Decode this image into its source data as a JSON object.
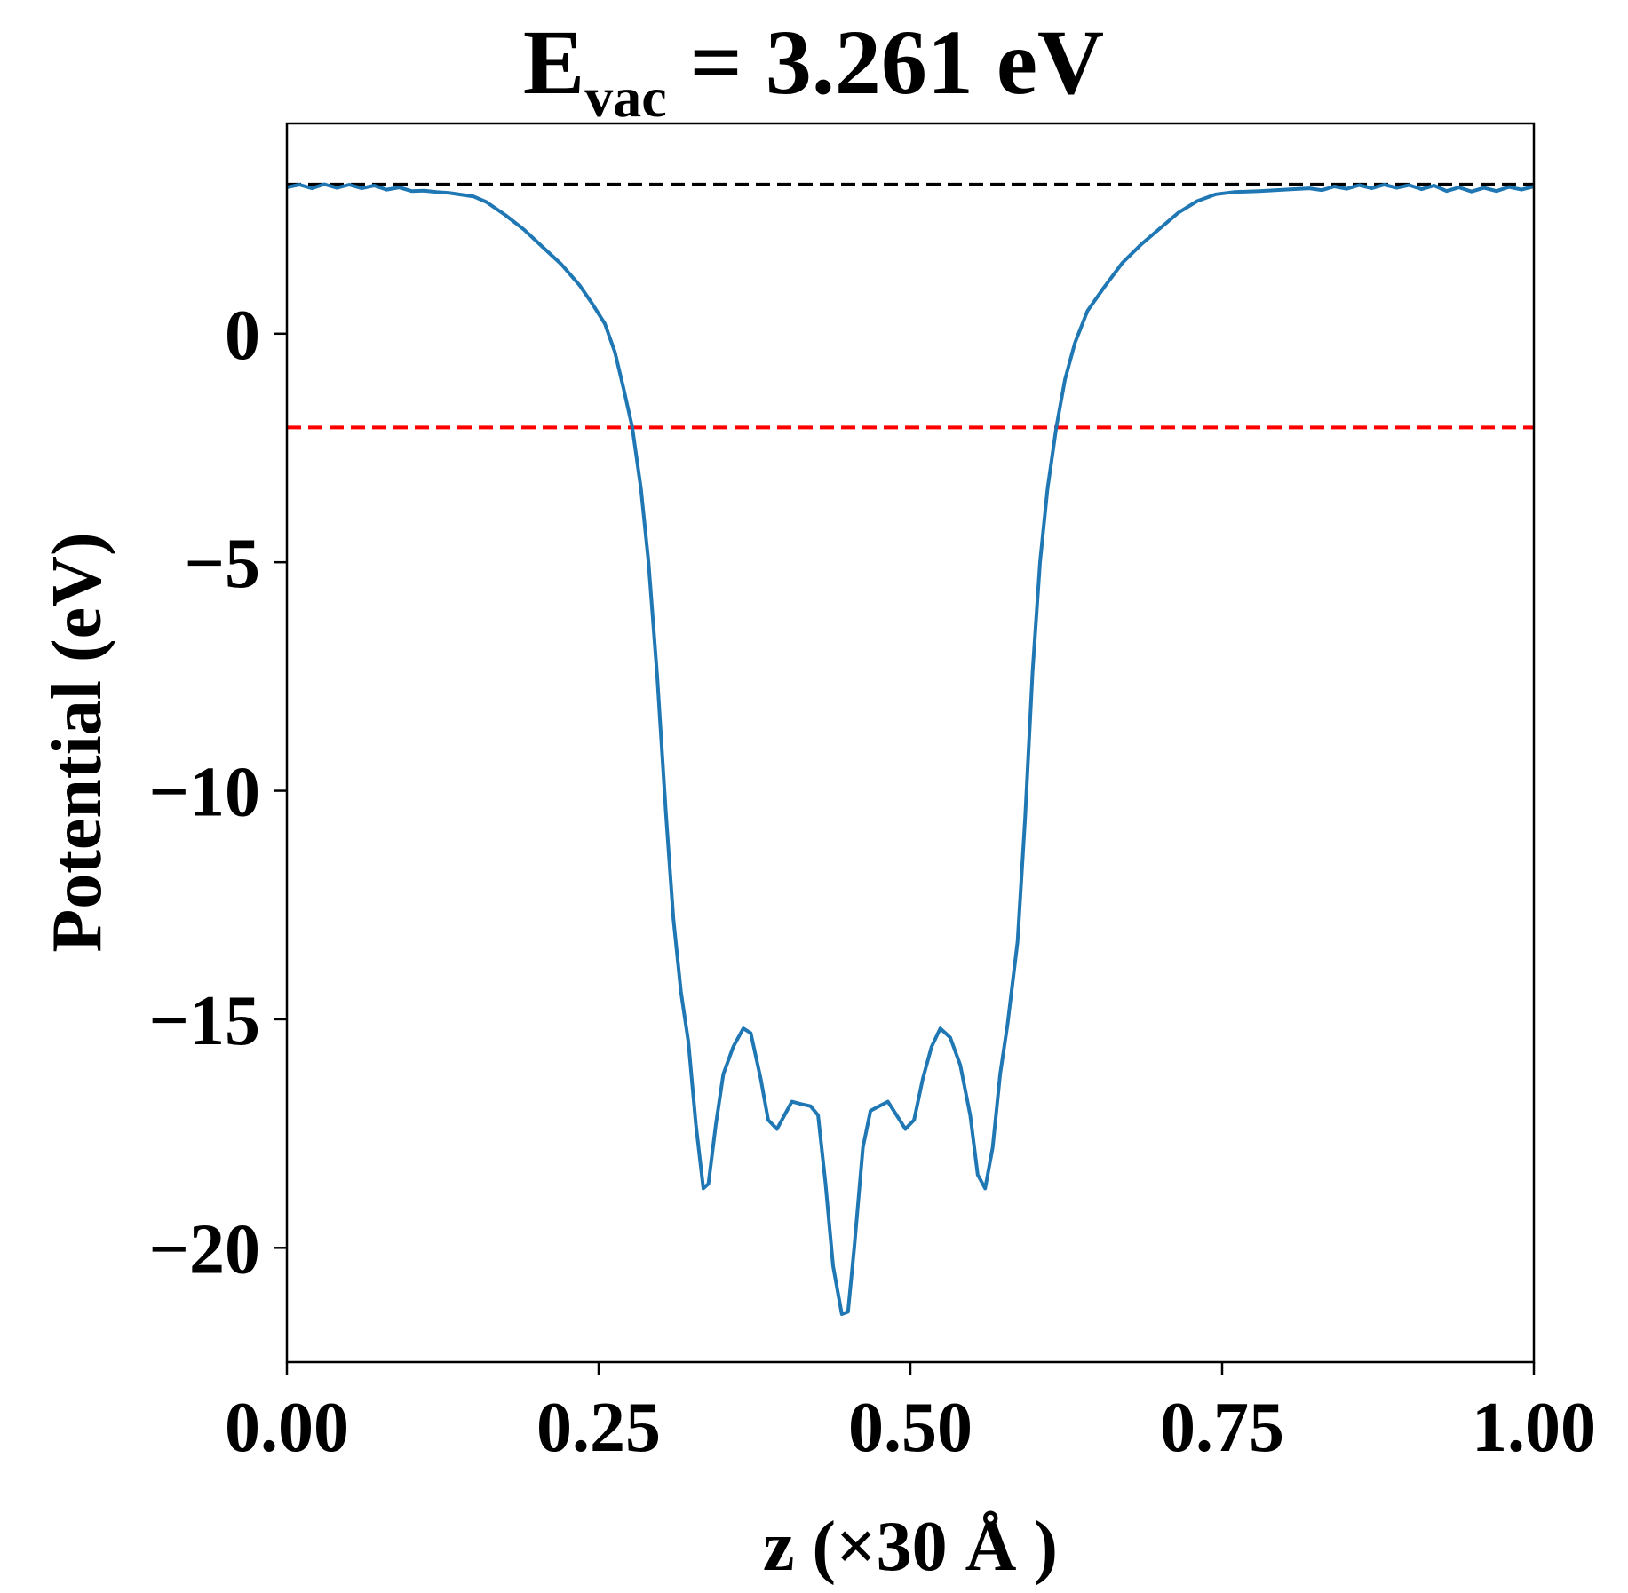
{
  "chart_data": {
    "type": "line",
    "title_main": "E",
    "title_sub": "vac",
    "title_rest": " = 3.261 eV",
    "xlabel": "z (×30 Å )",
    "ylabel": "Potential (eV)",
    "xlim": [
      0,
      1
    ],
    "ylim": [
      -22.5,
      4.6
    ],
    "x_ticks": [
      0,
      0.25,
      0.5,
      0.75,
      1.0
    ],
    "x_tick_labels": [
      "0.00",
      "0.25",
      "0.50",
      "0.75",
      "1.00"
    ],
    "y_ticks": [
      0,
      -5,
      -10,
      -15,
      -20
    ],
    "y_tick_labels": [
      "0",
      "−5",
      "−10",
      "−15",
      "−20"
    ],
    "grid": false,
    "reference_lines": [
      {
        "y": 3.261,
        "color": "#000000",
        "style": "dashed"
      },
      {
        "y": -2.05,
        "color": "#ff0000",
        "style": "dashed"
      }
    ],
    "series": [
      {
        "color": "#1f77b4",
        "points": [
          [
            0.0,
            3.2
          ],
          [
            0.01,
            3.26
          ],
          [
            0.02,
            3.18
          ],
          [
            0.03,
            3.27
          ],
          [
            0.04,
            3.19
          ],
          [
            0.05,
            3.26
          ],
          [
            0.06,
            3.18
          ],
          [
            0.07,
            3.24
          ],
          [
            0.08,
            3.15
          ],
          [
            0.09,
            3.2
          ],
          [
            0.1,
            3.12
          ],
          [
            0.11,
            3.13
          ],
          [
            0.12,
            3.1
          ],
          [
            0.13,
            3.08
          ],
          [
            0.15,
            3.0
          ],
          [
            0.16,
            2.88
          ],
          [
            0.175,
            2.6
          ],
          [
            0.19,
            2.28
          ],
          [
            0.205,
            1.9
          ],
          [
            0.22,
            1.52
          ],
          [
            0.235,
            1.05
          ],
          [
            0.245,
            0.65
          ],
          [
            0.255,
            0.22
          ],
          [
            0.263,
            -0.4
          ],
          [
            0.27,
            -1.2
          ],
          [
            0.277,
            -2.05
          ],
          [
            0.284,
            -3.4
          ],
          [
            0.29,
            -5.0
          ],
          [
            0.297,
            -7.5
          ],
          [
            0.304,
            -10.5
          ],
          [
            0.31,
            -12.8
          ],
          [
            0.316,
            -14.4
          ],
          [
            0.322,
            -15.5
          ],
          [
            0.328,
            -17.3
          ],
          [
            0.334,
            -18.7
          ],
          [
            0.338,
            -18.6
          ],
          [
            0.344,
            -17.3
          ],
          [
            0.35,
            -16.2
          ],
          [
            0.358,
            -15.6
          ],
          [
            0.366,
            -15.2
          ],
          [
            0.372,
            -15.3
          ],
          [
            0.38,
            -16.3
          ],
          [
            0.386,
            -17.2
          ],
          [
            0.393,
            -17.4
          ],
          [
            0.399,
            -17.1
          ],
          [
            0.405,
            -16.8
          ],
          [
            0.412,
            -16.85
          ],
          [
            0.42,
            -16.9
          ],
          [
            0.426,
            -17.1
          ],
          [
            0.432,
            -18.6
          ],
          [
            0.438,
            -20.4
          ],
          [
            0.445,
            -21.45
          ],
          [
            0.45,
            -21.4
          ],
          [
            0.455,
            -20.0
          ],
          [
            0.462,
            -17.8
          ],
          [
            0.468,
            -17.0
          ],
          [
            0.475,
            -16.9
          ],
          [
            0.482,
            -16.8
          ],
          [
            0.489,
            -17.1
          ],
          [
            0.496,
            -17.4
          ],
          [
            0.503,
            -17.2
          ],
          [
            0.51,
            -16.3
          ],
          [
            0.517,
            -15.6
          ],
          [
            0.524,
            -15.2
          ],
          [
            0.532,
            -15.4
          ],
          [
            0.54,
            -16.0
          ],
          [
            0.548,
            -17.1
          ],
          [
            0.554,
            -18.4
          ],
          [
            0.56,
            -18.7
          ],
          [
            0.566,
            -17.8
          ],
          [
            0.572,
            -16.2
          ],
          [
            0.578,
            -15.1
          ],
          [
            0.586,
            -13.3
          ],
          [
            0.592,
            -10.6
          ],
          [
            0.598,
            -7.4
          ],
          [
            0.604,
            -5.0
          ],
          [
            0.61,
            -3.4
          ],
          [
            0.617,
            -2.05
          ],
          [
            0.624,
            -1.0
          ],
          [
            0.632,
            -0.2
          ],
          [
            0.642,
            0.5
          ],
          [
            0.655,
            1.0
          ],
          [
            0.67,
            1.55
          ],
          [
            0.685,
            1.95
          ],
          [
            0.7,
            2.3
          ],
          [
            0.715,
            2.65
          ],
          [
            0.73,
            2.9
          ],
          [
            0.745,
            3.05
          ],
          [
            0.76,
            3.1
          ],
          [
            0.78,
            3.12
          ],
          [
            0.8,
            3.15
          ],
          [
            0.82,
            3.18
          ],
          [
            0.83,
            3.14
          ],
          [
            0.84,
            3.22
          ],
          [
            0.85,
            3.17
          ],
          [
            0.86,
            3.25
          ],
          [
            0.87,
            3.18
          ],
          [
            0.88,
            3.26
          ],
          [
            0.89,
            3.19
          ],
          [
            0.9,
            3.25
          ],
          [
            0.91,
            3.16
          ],
          [
            0.92,
            3.24
          ],
          [
            0.93,
            3.12
          ],
          [
            0.94,
            3.2
          ],
          [
            0.95,
            3.11
          ],
          [
            0.96,
            3.19
          ],
          [
            0.97,
            3.12
          ],
          [
            0.98,
            3.21
          ],
          [
            0.99,
            3.15
          ],
          [
            1.0,
            3.22
          ]
        ]
      }
    ]
  }
}
